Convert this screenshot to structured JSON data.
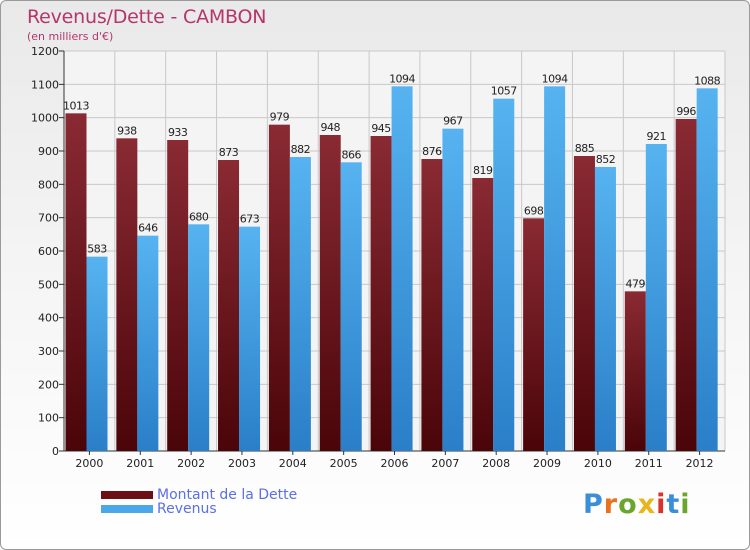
{
  "title": "Revenus/Dette - CAMBON",
  "subtitle": "(en milliers d'€)",
  "colors": {
    "dette": "#7a1c22",
    "revenus": "#4aa8ea",
    "title": "#b5356c",
    "legend_text": "#5a6fe8"
  },
  "legend": [
    {
      "label": "Montant de la Dette",
      "color": "#6b0f14"
    },
    {
      "label": "Revenus",
      "color": "#4aa8ea"
    }
  ],
  "logo": {
    "text": "Proxiti"
  },
  "chart_data": {
    "type": "bar",
    "title": "Revenus/Dette - CAMBON",
    "subtitle": "(en milliers d'€)",
    "categories": [
      "2000",
      "2001",
      "2002",
      "2003",
      "2004",
      "2005",
      "2006",
      "2007",
      "2008",
      "2009",
      "2010",
      "2011",
      "2012"
    ],
    "series": [
      {
        "name": "Montant de la Dette",
        "values": [
          1013,
          938,
          933,
          873,
          979,
          948,
          945,
          876,
          819,
          698,
          885,
          479,
          996
        ]
      },
      {
        "name": "Revenus",
        "values": [
          583,
          646,
          680,
          673,
          882,
          866,
          1094,
          967,
          1057,
          1094,
          852,
          921,
          1088
        ]
      }
    ],
    "ylim": [
      0,
      1200
    ],
    "yticks": [
      0,
      100,
      200,
      300,
      400,
      500,
      600,
      700,
      800,
      900,
      1000,
      1100,
      1200
    ],
    "grid": true,
    "legend_position": "bottom-left"
  }
}
